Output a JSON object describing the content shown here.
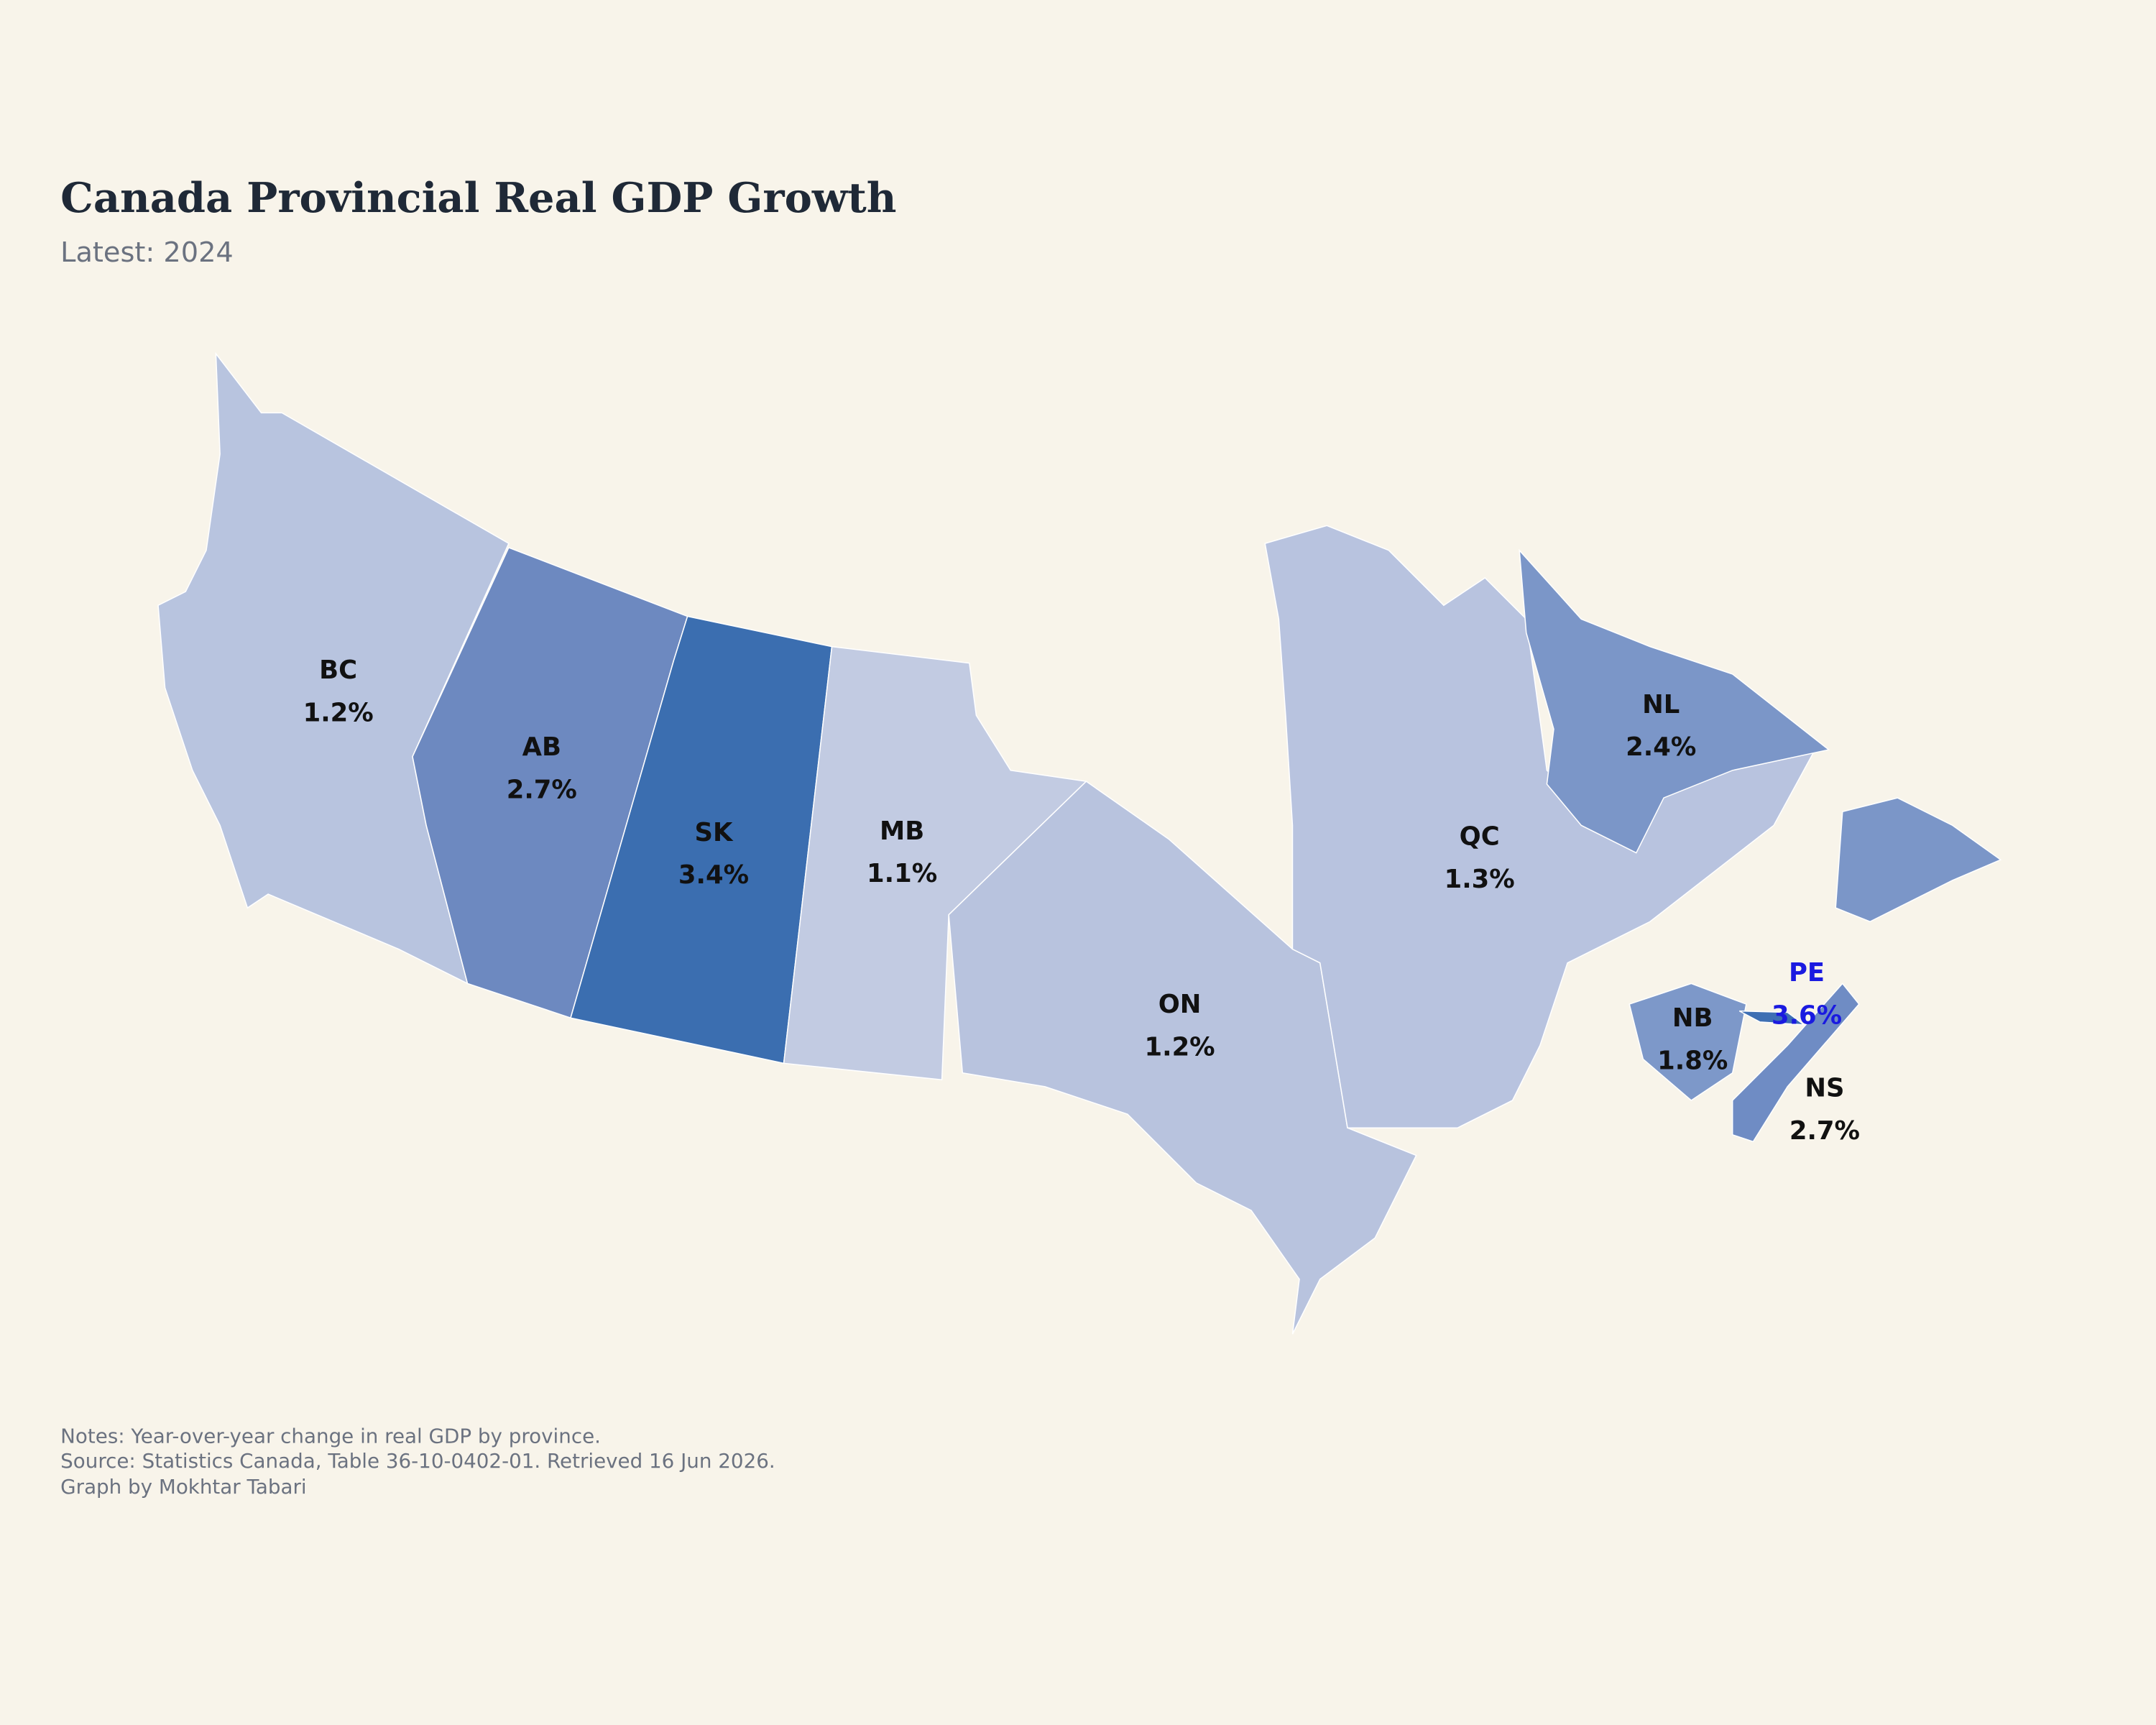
{
  "chart_data": {
    "type": "choropleth",
    "title": "Canada Provincial Real GDP Growth",
    "subtitle": "Latest: 2024",
    "categories": [
      "BC",
      "AB",
      "SK",
      "MB",
      "ON",
      "QC",
      "NL",
      "NB",
      "NS",
      "PE"
    ],
    "values": [
      1.2,
      2.7,
      3.4,
      1.1,
      1.2,
      1.3,
      2.4,
      1.8,
      2.7,
      3.6
    ],
    "value_labels": [
      "1.2%",
      "2.7%",
      "3.4%",
      "1.1%",
      "1.2%",
      "1.3%",
      "2.4%",
      "1.8%",
      "2.7%",
      "3.6%"
    ],
    "colors": [
      "#b8c4df",
      "#6d89c0",
      "#3b6eb0",
      "#c2cbe2",
      "#b8c3de",
      "#b8c3df",
      "#7b96c8",
      "#7d98c9",
      "#6f8cc4",
      "#3e6fb3"
    ],
    "label_colors": [
      "#111111",
      "#111111",
      "#111111",
      "#111111",
      "#111111",
      "#111111",
      "#111111",
      "#111111",
      "#111111",
      "#1a1ae0"
    ],
    "notes": [
      "Notes: Year-over-year change in real GDP by province.",
      "Source: Statistics Canada, Table 36-10-0402-01. Retrieved 16 Jun 2026.",
      "Graph by Mokhtar Tabari"
    ]
  }
}
